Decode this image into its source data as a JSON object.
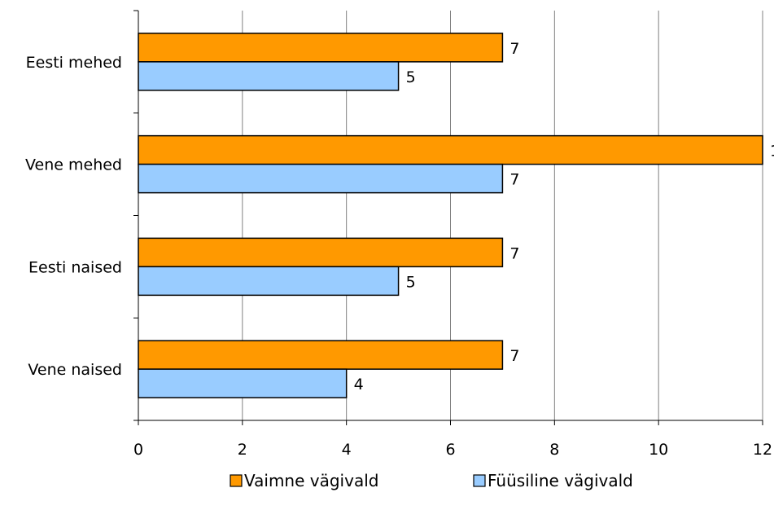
{
  "chart_data": {
    "type": "bar",
    "orientation": "horizontal",
    "title": "",
    "xlabel": "",
    "ylabel": "",
    "categories": [
      "Eesti mehed",
      "Vene mehed",
      "Eesti naised",
      "Vene naised"
    ],
    "series": [
      {
        "name": "Vaimne vägivald",
        "values": [
          7,
          12,
          7,
          7
        ],
        "color": "#ff9900"
      },
      {
        "name": "Füüsiline vägivald",
        "values": [
          5,
          7,
          5,
          4
        ],
        "color": "#99ccff"
      }
    ],
    "xlim": [
      0,
      12
    ],
    "xticks": [
      "0",
      "2",
      "4",
      "6",
      "8",
      "10",
      "12"
    ],
    "grid": "vertical",
    "legend": "bottom"
  }
}
